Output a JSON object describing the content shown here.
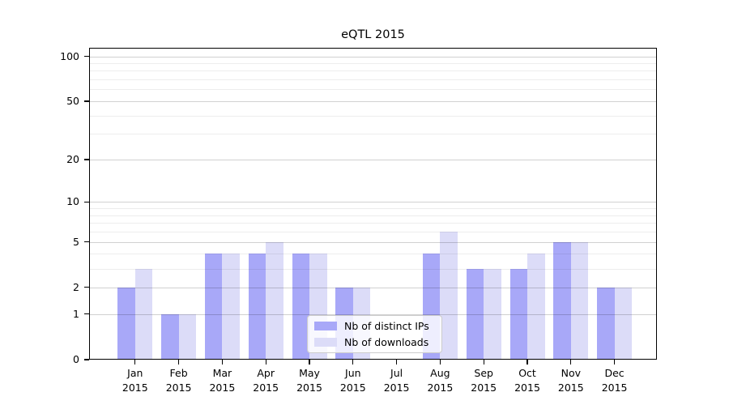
{
  "chart_data": {
    "type": "bar",
    "title": "eQTL 2015",
    "categories": [
      "Jan",
      "Feb",
      "Mar",
      "Apr",
      "May",
      "Jun",
      "Jul",
      "Aug",
      "Sep",
      "Oct",
      "Nov",
      "Dec"
    ],
    "category_year": "2015",
    "series": [
      {
        "name": "Nb of distinct IPs",
        "color": "#a8a8f8",
        "values": [
          2,
          1,
          4,
          4,
          4,
          2,
          0,
          4,
          3,
          3,
          5,
          2
        ]
      },
      {
        "name": "Nb of downloads",
        "color": "#dcdcf8",
        "values": [
          3,
          1,
          4,
          5,
          4,
          2,
          0,
          6,
          3,
          4,
          5,
          2
        ]
      }
    ],
    "yscale": "log1p",
    "ylim": [
      0,
      114
    ],
    "y_tick_values": [
      0,
      1,
      2,
      5,
      10,
      20,
      50,
      100
    ],
    "y_tick_labels": [
      "0",
      "1",
      "2",
      "5",
      "10",
      "20",
      "50",
      "100"
    ],
    "y_minor_gridlines": [
      3,
      4,
      6,
      7,
      8,
      9,
      30,
      40,
      60,
      70,
      80,
      90
    ],
    "grid": true,
    "legend_position": "lower-center"
  },
  "colors": {
    "background": "#ffffff",
    "frame": "#000000",
    "bar_distinct_ips": "#a8a8f8",
    "bar_downloads": "#dcdcf8",
    "grid_major": "rgba(0,0,0,0.18)",
    "grid_minor": "rgba(0,0,0,0.07)",
    "legend_border": "#cccccc",
    "text": "#000000"
  }
}
